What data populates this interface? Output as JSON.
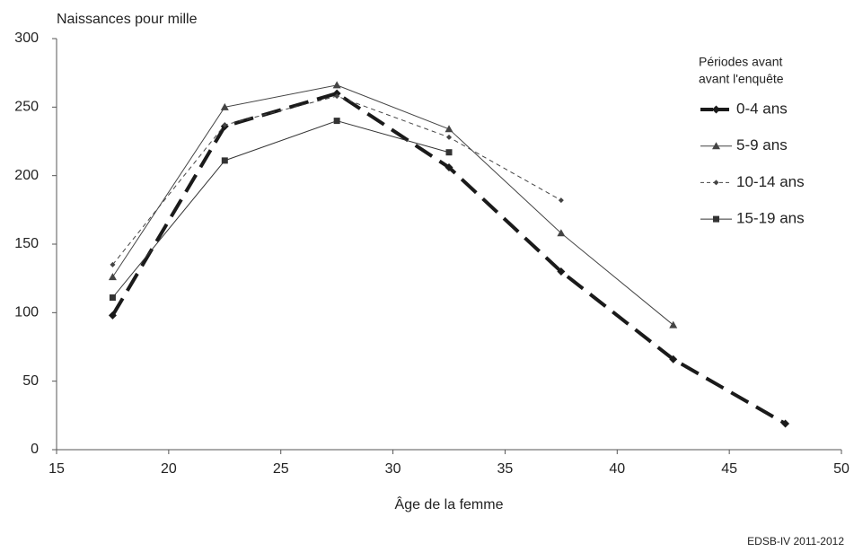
{
  "chart_data": {
    "type": "line",
    "ylabel": "Naissances pour mille",
    "xlabel": "Âge de la femme",
    "source": "EDSB-IV 2011-2012",
    "legend_title": [
      "Périodes avant",
      "avant l'enquête"
    ],
    "xlim": [
      15,
      50
    ],
    "xticks": [
      15,
      20,
      25,
      30,
      35,
      40,
      45,
      50
    ],
    "ylim": [
      0,
      300
    ],
    "yticks": [
      0,
      50,
      100,
      150,
      200,
      250,
      300
    ],
    "grid": false,
    "legend": "right",
    "series": [
      {
        "name": "0-4 ans",
        "color": "#1a1a1a",
        "width": 4,
        "dash": "22,10",
        "marker": "diamond",
        "x": [
          17.5,
          22.5,
          27.5,
          32.5,
          37.5,
          42.5,
          47.5
        ],
        "values": [
          98,
          236,
          260,
          206,
          130,
          66,
          19
        ]
      },
      {
        "name": "5-9 ans",
        "color": "#444444",
        "width": 1,
        "dash": "none",
        "marker": "triangle",
        "x": [
          17.5,
          22.5,
          27.5,
          32.5,
          37.5,
          42.5
        ],
        "values": [
          126,
          250,
          266,
          234,
          158,
          91
        ]
      },
      {
        "name": "10-14 ans",
        "color": "#444444",
        "width": 1,
        "dash": "5,4",
        "marker": "small-diamond",
        "x": [
          17.5,
          22.5,
          27.5,
          32.5,
          37.5
        ],
        "values": [
          135,
          237,
          258,
          228,
          182
        ]
      },
      {
        "name": "15-19 ans",
        "color": "#333333",
        "width": 1,
        "dash": "none",
        "marker": "square",
        "x": [
          17.5,
          22.5,
          27.5,
          32.5
        ],
        "values": [
          111,
          211,
          240,
          217
        ]
      }
    ]
  }
}
